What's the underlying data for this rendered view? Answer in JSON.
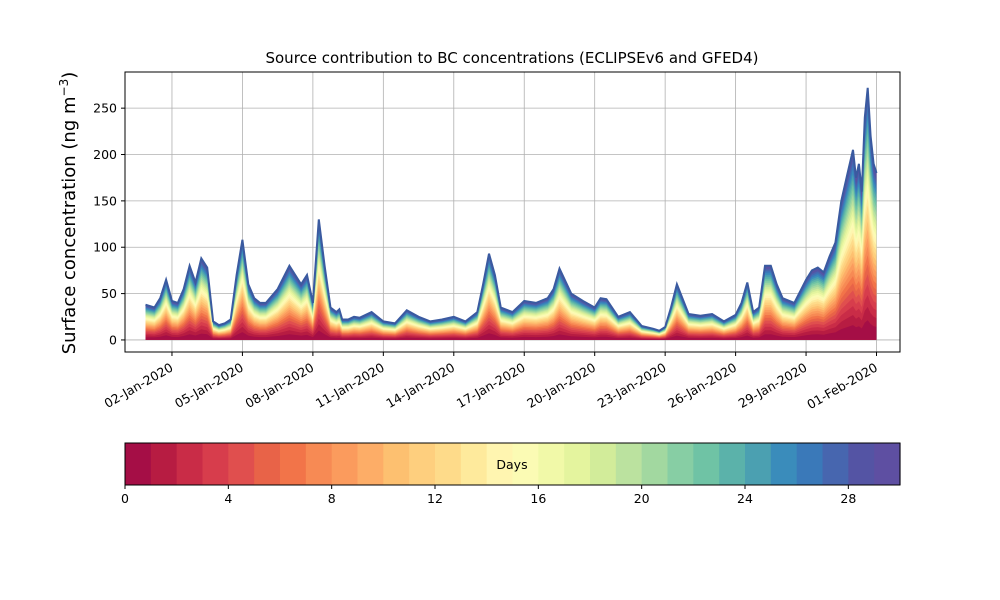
{
  "chart_data": {
    "type": "area",
    "title": "Source contribution to BC concentrations (ECLIPSEv6 and GFED4)",
    "ylabel": "Surface concentration (ng m",
    "ylabel_superscript": "−3",
    "ylabel_suffix": ")",
    "xlim": [
      "2019-12-31T00:00",
      "2020-02-02T00:00"
    ],
    "ylim": [
      -13,
      289
    ],
    "yticks": [
      0,
      50,
      100,
      150,
      200,
      250
    ],
    "xticks": [
      {
        "date": "2020-01-02",
        "label": "02-Jan-2020"
      },
      {
        "date": "2020-01-05",
        "label": "05-Jan-2020"
      },
      {
        "date": "2020-01-08",
        "label": "08-Jan-2020"
      },
      {
        "date": "2020-01-11",
        "label": "11-Jan-2020"
      },
      {
        "date": "2020-01-14",
        "label": "14-Jan-2020"
      },
      {
        "date": "2020-01-17",
        "label": "17-Jan-2020"
      },
      {
        "date": "2020-01-20",
        "label": "20-Jan-2020"
      },
      {
        "date": "2020-01-23",
        "label": "23-Jan-2020"
      },
      {
        "date": "2020-01-26",
        "label": "26-Jan-2020"
      },
      {
        "date": "2020-01-29",
        "label": "29-Jan-2020"
      },
      {
        "date": "2020-02-01",
        "label": "01-Feb-2020"
      }
    ],
    "grid": true,
    "series_count": 30,
    "total_concentration": {
      "x": [
        "2019-12-31T21:00",
        "2020-01-01T06:00",
        "2020-01-01T12:00",
        "2020-01-01T18:00",
        "2020-01-02T00:00",
        "2020-01-02T06:00",
        "2020-01-02T12:00",
        "2020-01-02T18:00",
        "2020-01-03T00:00",
        "2020-01-03T06:00",
        "2020-01-03T12:00",
        "2020-01-03T18:00",
        "2020-01-04T00:00",
        "2020-01-04T06:00",
        "2020-01-04T12:00",
        "2020-01-04T18:00",
        "2020-01-05T00:00",
        "2020-01-05T06:00",
        "2020-01-05T12:00",
        "2020-01-05T18:00",
        "2020-01-06T00:00",
        "2020-01-06T12:00",
        "2020-01-07T00:00",
        "2020-01-07T12:00",
        "2020-01-07T18:00",
        "2020-01-08T00:00",
        "2020-01-08T06:00",
        "2020-01-08T12:00",
        "2020-01-08T18:00",
        "2020-01-09T00:00",
        "2020-01-09T03:00",
        "2020-01-09T06:00",
        "2020-01-09T12:00",
        "2020-01-09T18:00",
        "2020-01-10T00:00",
        "2020-01-10T12:00",
        "2020-01-11T00:00",
        "2020-01-11T12:00",
        "2020-01-12T00:00",
        "2020-01-12T12:00",
        "2020-01-13T00:00",
        "2020-01-13T12:00",
        "2020-01-14T00:00",
        "2020-01-14T12:00",
        "2020-01-15T00:00",
        "2020-01-15T06:00",
        "2020-01-15T12:00",
        "2020-01-15T18:00",
        "2020-01-16T00:00",
        "2020-01-16T12:00",
        "2020-01-17T00:00",
        "2020-01-17T12:00",
        "2020-01-18T00:00",
        "2020-01-18T06:00",
        "2020-01-18T12:00",
        "2020-01-19T00:00",
        "2020-01-19T12:00",
        "2020-01-20T00:00",
        "2020-01-20T06:00",
        "2020-01-20T12:00",
        "2020-01-21T00:00",
        "2020-01-21T12:00",
        "2020-01-22T00:00",
        "2020-01-22T12:00",
        "2020-01-22T18:00",
        "2020-01-23T00:00",
        "2020-01-23T06:00",
        "2020-01-23T12:00",
        "2020-01-24T00:00",
        "2020-01-24T12:00",
        "2020-01-25T00:00",
        "2020-01-25T12:00",
        "2020-01-26T00:00",
        "2020-01-26T06:00",
        "2020-01-26T12:00",
        "2020-01-26T18:00",
        "2020-01-27T00:00",
        "2020-01-27T06:00",
        "2020-01-27T12:00",
        "2020-01-27T18:00",
        "2020-01-28T00:00",
        "2020-01-28T12:00",
        "2020-01-29T00:00",
        "2020-01-29T06:00",
        "2020-01-29T12:00",
        "2020-01-29T18:00",
        "2020-01-30T00:00",
        "2020-01-30T06:00",
        "2020-01-30T12:00",
        "2020-01-30T18:00",
        "2020-01-31T00:00",
        "2020-01-31T03:00",
        "2020-01-31T06:00",
        "2020-01-31T09:00",
        "2020-01-31T12:00",
        "2020-01-31T15:00",
        "2020-01-31T18:00",
        "2020-01-31T21:00",
        "2020-02-01T00:00"
      ],
      "y": [
        38,
        35,
        45,
        65,
        42,
        40,
        55,
        80,
        62,
        88,
        78,
        20,
        16,
        18,
        22,
        70,
        108,
        60,
        45,
        40,
        40,
        55,
        80,
        60,
        70,
        40,
        130,
        80,
        35,
        30,
        33,
        22,
        22,
        25,
        24,
        30,
        20,
        18,
        32,
        25,
        20,
        22,
        25,
        20,
        30,
        60,
        93,
        70,
        35,
        30,
        42,
        40,
        45,
        55,
        77,
        50,
        42,
        35,
        45,
        44,
        25,
        30,
        15,
        12,
        10,
        14,
        35,
        60,
        28,
        26,
        28,
        20,
        27,
        40,
        62,
        30,
        35,
        80,
        80,
        60,
        45,
        40,
        65,
        75,
        78,
        73,
        90,
        105,
        150,
        178,
        205,
        175,
        190,
        160,
        240,
        272,
        220,
        190,
        180
      ]
    },
    "colorbar": {
      "label": "Days",
      "range": [
        0,
        30
      ],
      "ticks": [
        0,
        4,
        8,
        12,
        16,
        20,
        24,
        28
      ],
      "colors": [
        "#a50e46",
        "#b71c42",
        "#c92c47",
        "#d73d4c",
        "#e04f4e",
        "#e86348",
        "#f27449",
        "#f78a54",
        "#fb9b5d",
        "#fdad67",
        "#fdc070",
        "#fecf7e",
        "#fedb8a",
        "#feea9c",
        "#fff5b0",
        "#fbfbb4",
        "#f1f9a8",
        "#e4f49e",
        "#d2ec9a",
        "#bbe29f",
        "#a2d8a0",
        "#87cea4",
        "#6fc3a5",
        "#5bb2aa",
        "#4ba0b1",
        "#3a8cbb",
        "#3a79b9",
        "#4766af",
        "#5454a4",
        "#5e4fa2"
      ]
    }
  }
}
